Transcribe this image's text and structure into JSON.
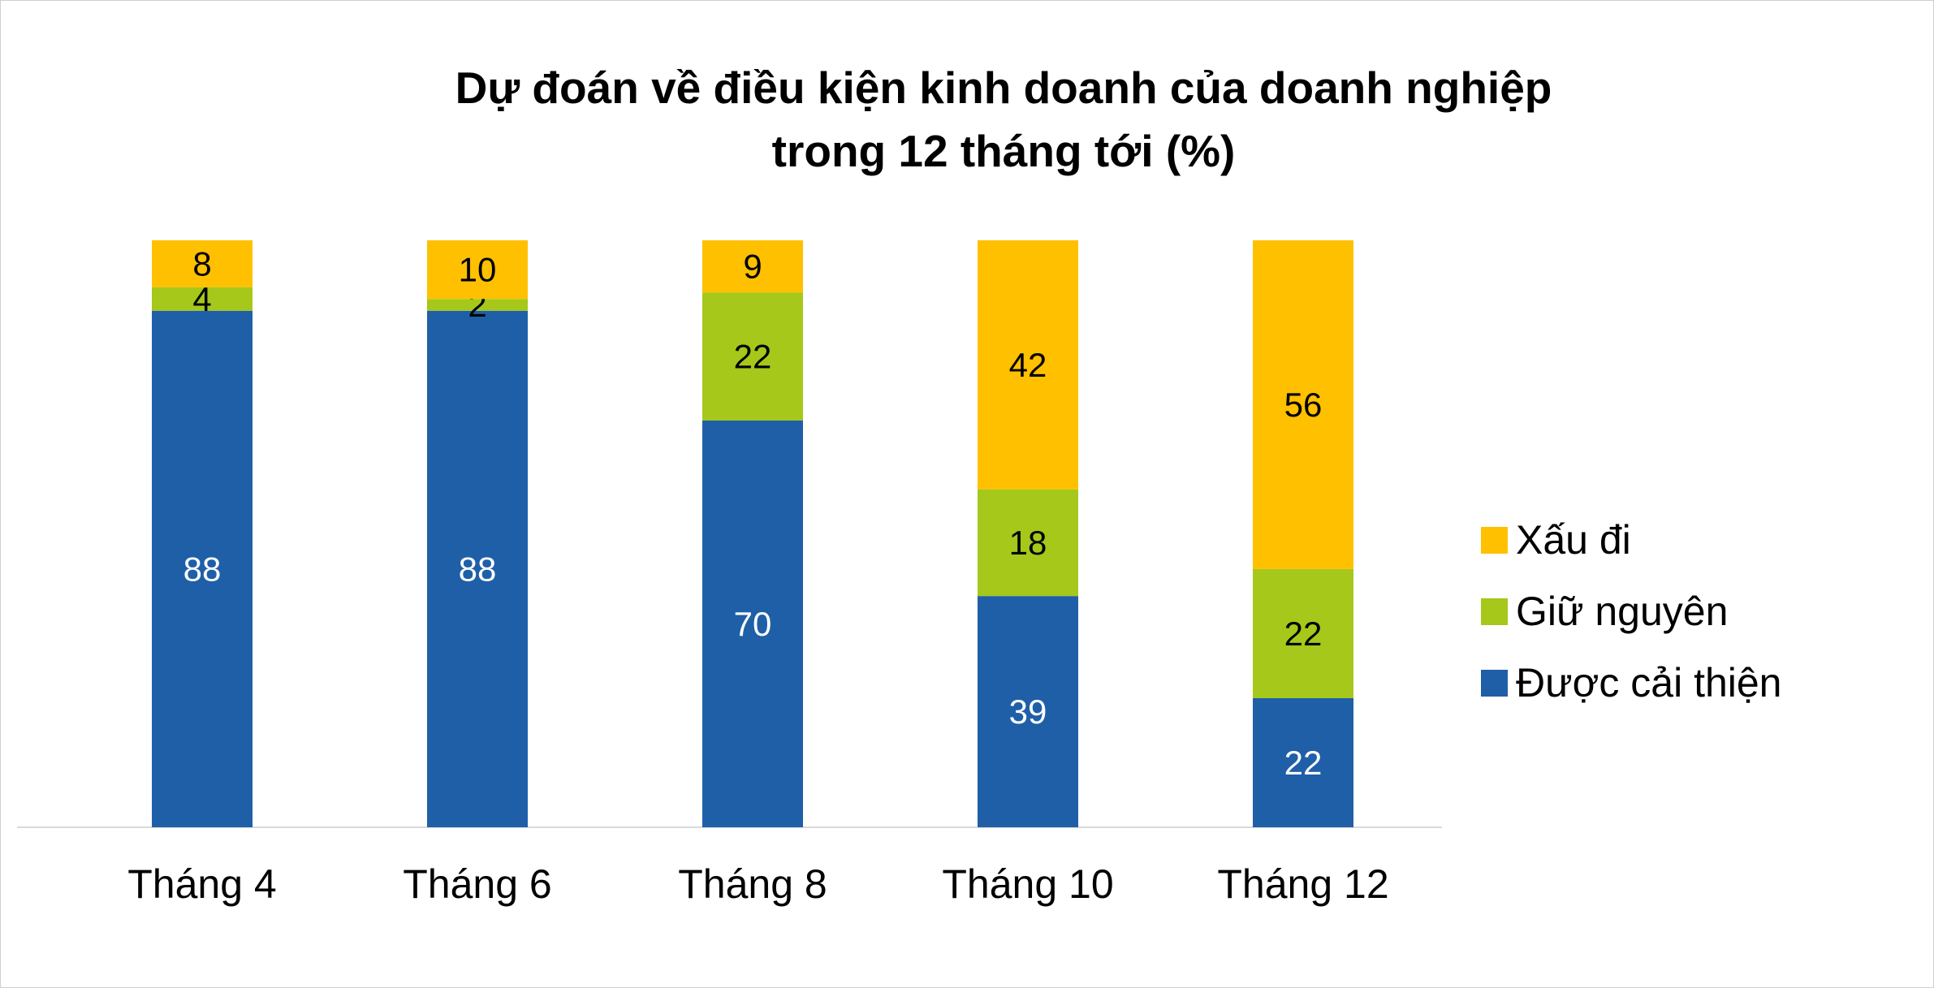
{
  "chart_data": {
    "type": "bar",
    "stacked": true,
    "title": "Dự đoán về điều kiện kinh doanh của doanh nghiệp",
    "subtitle": "trong 12 tháng tới (%)",
    "categories": [
      "Tháng 4",
      "Tháng 6",
      "Tháng 8",
      "Tháng 10",
      "Tháng 12"
    ],
    "series": [
      {
        "name": "Được cải thiện",
        "values": [
          88,
          88,
          70,
          39,
          22
        ],
        "color": "#1F5FA8",
        "label_color": "#FFFFFF"
      },
      {
        "name": "Giữ nguyên",
        "values": [
          4,
          2,
          22,
          18,
          22
        ],
        "color": "#A5C81B",
        "label_color": "#000000"
      },
      {
        "name": "Xấu đi",
        "values": [
          8,
          10,
          9,
          42,
          56
        ],
        "color": "#FFC000",
        "label_color": "#000000"
      }
    ],
    "legend_order": [
      "Xấu đi",
      "Giữ nguyên",
      "Được cải thiện"
    ],
    "legend_position": "right",
    "grid": false,
    "y_axis_visible": false,
    "axis_line_color": "#D9D9D9"
  }
}
